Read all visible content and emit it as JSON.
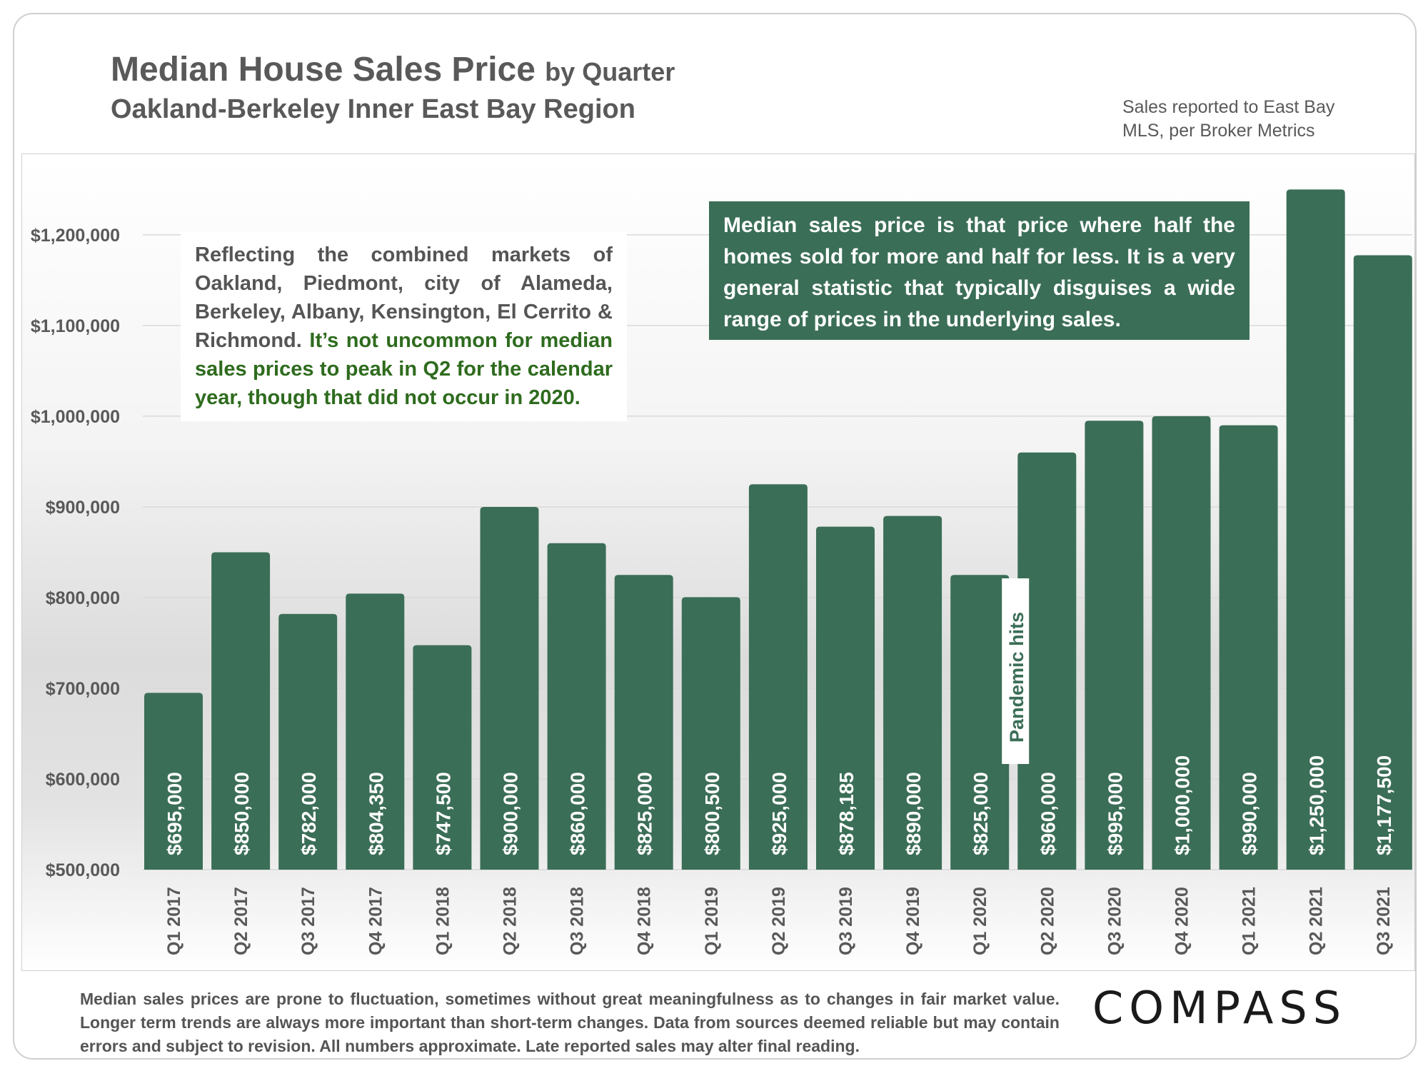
{
  "header": {
    "title": "Median House Sales Price",
    "title_suffix": "by Quarter",
    "subtitle": "Oakland-Berkeley Inner East Bay Region",
    "source_note": "Sales reported to East Bay MLS, per Broker Metrics"
  },
  "notes": {
    "left_plain": "Reflecting the combined markets of Oakland, Piedmont, city of Alameda, Berkeley, Albany, Kensington, El Cerrito & Richmond.",
    "left_highlight": "It’s not uncommon for median sales prices to peak in Q2 for the calendar year, though that did not occur in 2020.",
    "right": "Median sales price is that price where half the homes sold for more and half for less. It is a very general statistic that typically disguises a wide range of prices in the underlying sales."
  },
  "footer": {
    "disclaimer": "Median sales prices are prone to fluctuation, sometimes without great meaningfulness as to changes in fair market value. Longer term trends are always more important than short-term changes. Data from sources deemed reliable but may contain errors and subject to revision. All numbers approximate. Late reported sales may alter final reading.",
    "logo_text": "COMPASS"
  },
  "chart_data": {
    "type": "bar",
    "categories": [
      "Q1 2017",
      "Q2 2017",
      "Q3 2017",
      "Q4 2017",
      "Q1 2018",
      "Q2 2018",
      "Q3 2018",
      "Q4 2018",
      "Q1 2019",
      "Q2 2019",
      "Q3 2019",
      "Q4 2019",
      "Q1 2020",
      "Q2 2020",
      "Q3 2020",
      "Q4 2020",
      "Q1 2021",
      "Q2 2021",
      "Q3 2021"
    ],
    "values": [
      695000,
      850000,
      782000,
      804350,
      747500,
      900000,
      860000,
      825000,
      800500,
      925000,
      878185,
      890000,
      825000,
      960000,
      995000,
      1000000,
      990000,
      1250000,
      1177500
    ],
    "data_labels": [
      "$695,000",
      "$850,000",
      "$782,000",
      "$804,350",
      "$747,500",
      "$900,000",
      "$860,000",
      "$825,000",
      "$800,500",
      "$925,000",
      "$878,185",
      "$890,000",
      "$825,000",
      "$960,000",
      "$995,000",
      "$1,000,000",
      "$990,000",
      "$1,250,000",
      "$1,177,500"
    ],
    "y_ticks": [
      500000,
      600000,
      700000,
      800000,
      900000,
      1000000,
      1100000,
      1200000
    ],
    "y_tick_labels": [
      "$500,000",
      "$600,000",
      "$700,000",
      "$800,000",
      "$900,000",
      "$1,000,000",
      "$1,100,000",
      "$1,200,000"
    ],
    "ylim": [
      500000,
      1270000
    ],
    "annotation": "Pandemic hits",
    "annotation_category": "Q1 2020",
    "bar_color": "#3b6e57",
    "grid": true,
    "xlabel": "",
    "ylabel": ""
  }
}
